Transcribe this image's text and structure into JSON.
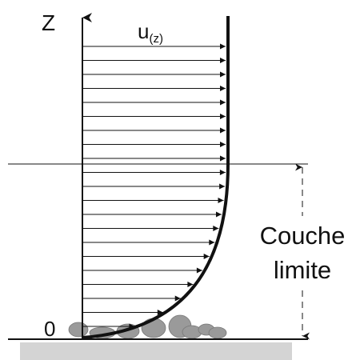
{
  "axis_label": "Z",
  "velocity_label": "u",
  "velocity_subscript": "(z)",
  "origin_label": "0",
  "layer_label": [
    "Couche",
    "limite"
  ]
}
